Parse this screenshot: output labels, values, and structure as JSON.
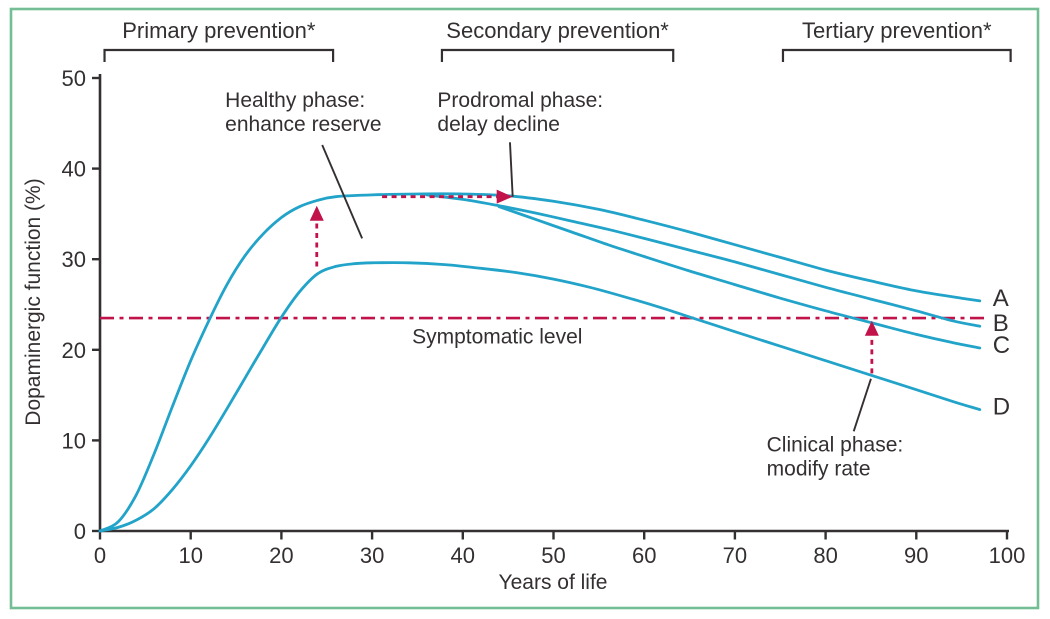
{
  "palette": {
    "curve_teal": "#22a3c9",
    "accent_red": "#c1124a",
    "frame_green": "#73be94",
    "ink": "#343031"
  },
  "prevention_brackets": [
    {
      "label": "Primary prevention*",
      "from_year": 0.5,
      "to_year": 25.7
    },
    {
      "label": "Secondary prevention*",
      "from_year": 37.7,
      "to_year": 63.2
    },
    {
      "label": "Tertiary prevention*",
      "from_year": 75.3,
      "to_year": 100.4
    }
  ],
  "chart_data": {
    "type": "line",
    "title": "",
    "xlabel": "Years of life",
    "ylabel": "Dopaminergic function (%)",
    "xlim": [
      0,
      100
    ],
    "ylim": [
      0,
      50
    ],
    "xticks": [
      0,
      10,
      20,
      30,
      40,
      50,
      60,
      70,
      80,
      90,
      100
    ],
    "yticks": [
      0,
      10,
      20,
      30,
      40,
      50
    ],
    "grid": false,
    "legend_position": "curve-end-labels-right",
    "series": [
      {
        "name": "A",
        "points": [
          [
            0,
            0
          ],
          [
            2,
            1
          ],
          [
            4,
            4
          ],
          [
            6,
            8.6
          ],
          [
            8,
            13.8
          ],
          [
            10,
            18.8
          ],
          [
            12,
            23.2
          ],
          [
            14,
            27.2
          ],
          [
            16,
            30.4
          ],
          [
            18,
            32.8
          ],
          [
            20,
            34.6
          ],
          [
            22,
            35.8
          ],
          [
            24,
            36.5
          ],
          [
            26,
            36.9
          ],
          [
            30,
            37.1
          ],
          [
            35,
            37.2
          ],
          [
            40,
            37.2
          ],
          [
            45,
            37
          ],
          [
            50,
            36.4
          ],
          [
            55,
            35.5
          ],
          [
            60,
            34.3
          ],
          [
            65,
            33
          ],
          [
            70,
            31.6
          ],
          [
            75,
            30.2
          ],
          [
            80,
            28.8
          ],
          [
            85,
            27.6
          ],
          [
            90,
            26.5
          ],
          [
            95,
            25.7
          ],
          [
            97,
            25.4
          ]
        ]
      },
      {
        "name": "B",
        "points": [
          [
            36,
            37.1
          ],
          [
            40,
            36.6
          ],
          [
            44,
            35.9
          ],
          [
            48,
            35.1
          ],
          [
            52,
            34.2
          ],
          [
            56,
            33.3
          ],
          [
            60,
            32.3
          ],
          [
            65,
            31
          ],
          [
            70,
            29.7
          ],
          [
            75,
            28.3
          ],
          [
            80,
            26.9
          ],
          [
            85,
            25.6
          ],
          [
            90,
            24.3
          ],
          [
            94,
            23.2
          ],
          [
            97,
            22.6
          ]
        ]
      },
      {
        "name": "C",
        "points": [
          [
            44,
            35.8
          ],
          [
            48,
            34.4
          ],
          [
            52,
            33
          ],
          [
            56,
            31.6
          ],
          [
            60,
            30.3
          ],
          [
            65,
            28.7
          ],
          [
            70,
            27.2
          ],
          [
            75,
            25.7
          ],
          [
            80,
            24.3
          ],
          [
            85,
            23
          ],
          [
            90,
            21.7
          ],
          [
            94,
            20.8
          ],
          [
            97,
            20.2
          ]
        ]
      },
      {
        "name": "D",
        "points": [
          [
            0,
            0
          ],
          [
            2,
            0.4
          ],
          [
            4,
            1.2
          ],
          [
            6,
            2.5
          ],
          [
            8,
            4.6
          ],
          [
            10,
            7.2
          ],
          [
            12,
            10.2
          ],
          [
            14,
            13.5
          ],
          [
            16,
            16.9
          ],
          [
            18,
            20.3
          ],
          [
            20,
            23.6
          ],
          [
            22,
            26.4
          ],
          [
            24,
            28.4
          ],
          [
            26,
            29.2
          ],
          [
            28,
            29.5
          ],
          [
            30,
            29.6
          ],
          [
            34,
            29.6
          ],
          [
            38,
            29.4
          ],
          [
            42,
            29
          ],
          [
            46,
            28.5
          ],
          [
            50,
            27.8
          ],
          [
            54,
            26.9
          ],
          [
            58,
            25.8
          ],
          [
            62,
            24.6
          ],
          [
            66,
            23.3
          ],
          [
            70,
            22
          ],
          [
            75,
            20.4
          ],
          [
            80,
            18.8
          ],
          [
            85,
            17.2
          ],
          [
            90,
            15.6
          ],
          [
            94,
            14.3
          ],
          [
            97,
            13.4
          ]
        ]
      }
    ],
    "reference_line": {
      "label": "Symptomatic level",
      "value": 23.5,
      "from_year": 0,
      "to_year": 97.6,
      "label_x_year": 43.8,
      "label_y_pct": 20.7
    },
    "annotations": [
      {
        "id": "healthy",
        "line1": "Healthy phase:",
        "line2": "enhance reserve",
        "x_year": 13.8,
        "y_pct": 46.8,
        "pointer": {
          "x1_year": 24.5,
          "y1_pct": 42.6,
          "x2_year": 28.9,
          "y2_pct": 32.3
        }
      },
      {
        "id": "prodromal",
        "line1": "Prodromal phase:",
        "line2": "delay decline",
        "x_year": 37.2,
        "y_pct": 46.8,
        "pointer": {
          "x1_year": 45.2,
          "y1_pct": 42.9,
          "x2_year": 45.5,
          "y2_pct": 36.9
        }
      },
      {
        "id": "clinical",
        "line1": "Clinical phase:",
        "line2": "modify rate",
        "x_year": 73.5,
        "y_pct": 8.8,
        "pointer": {
          "x1_year": 85.0,
          "y1_pct": 16.8,
          "x2_year": 83.1,
          "y2_pct": 11.0
        }
      }
    ],
    "arrows": [
      {
        "id": "enhance-reserve-arrow",
        "direction": "up",
        "x_year": 23.9,
        "from_pct": 29.2,
        "to_pct": 35.9
      },
      {
        "id": "delay-decline-arrow",
        "direction": "right",
        "y_pct": 36.9,
        "from_year": 31.1,
        "to_year": 45.5
      },
      {
        "id": "modify-rate-arrow",
        "direction": "up",
        "x_year": 85.1,
        "from_pct": 17.4,
        "to_pct": 23.2
      }
    ]
  }
}
